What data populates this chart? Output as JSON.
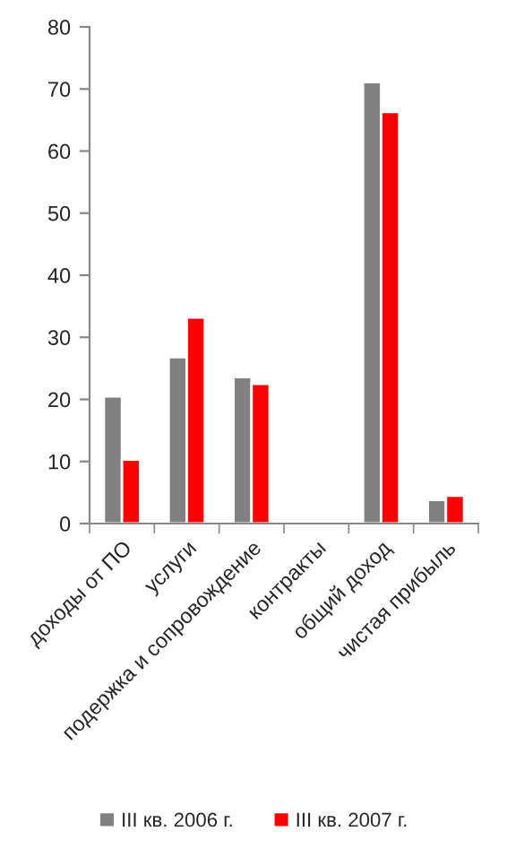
{
  "chart_data": {
    "type": "bar",
    "categories": [
      "доходы от ПО",
      "услуги",
      "подержка и сопровождение",
      "контракты",
      "общий доход",
      "чистая прибыль"
    ],
    "series": [
      {
        "name": "III кв. 2006 г.",
        "color": "#808080",
        "values": [
          20.5,
          26.8,
          23.6,
          null,
          71.1,
          3.8
        ]
      },
      {
        "name": "III кв. 2007 г.",
        "color": "#ff0000",
        "values": [
          10.3,
          33.2,
          22.5,
          null,
          66.3,
          4.5
        ]
      }
    ],
    "ylim": [
      0,
      80
    ],
    "yticks": [
      0,
      10,
      20,
      30,
      40,
      50,
      60,
      70,
      80
    ],
    "grid": false,
    "legend": "bottom"
  }
}
